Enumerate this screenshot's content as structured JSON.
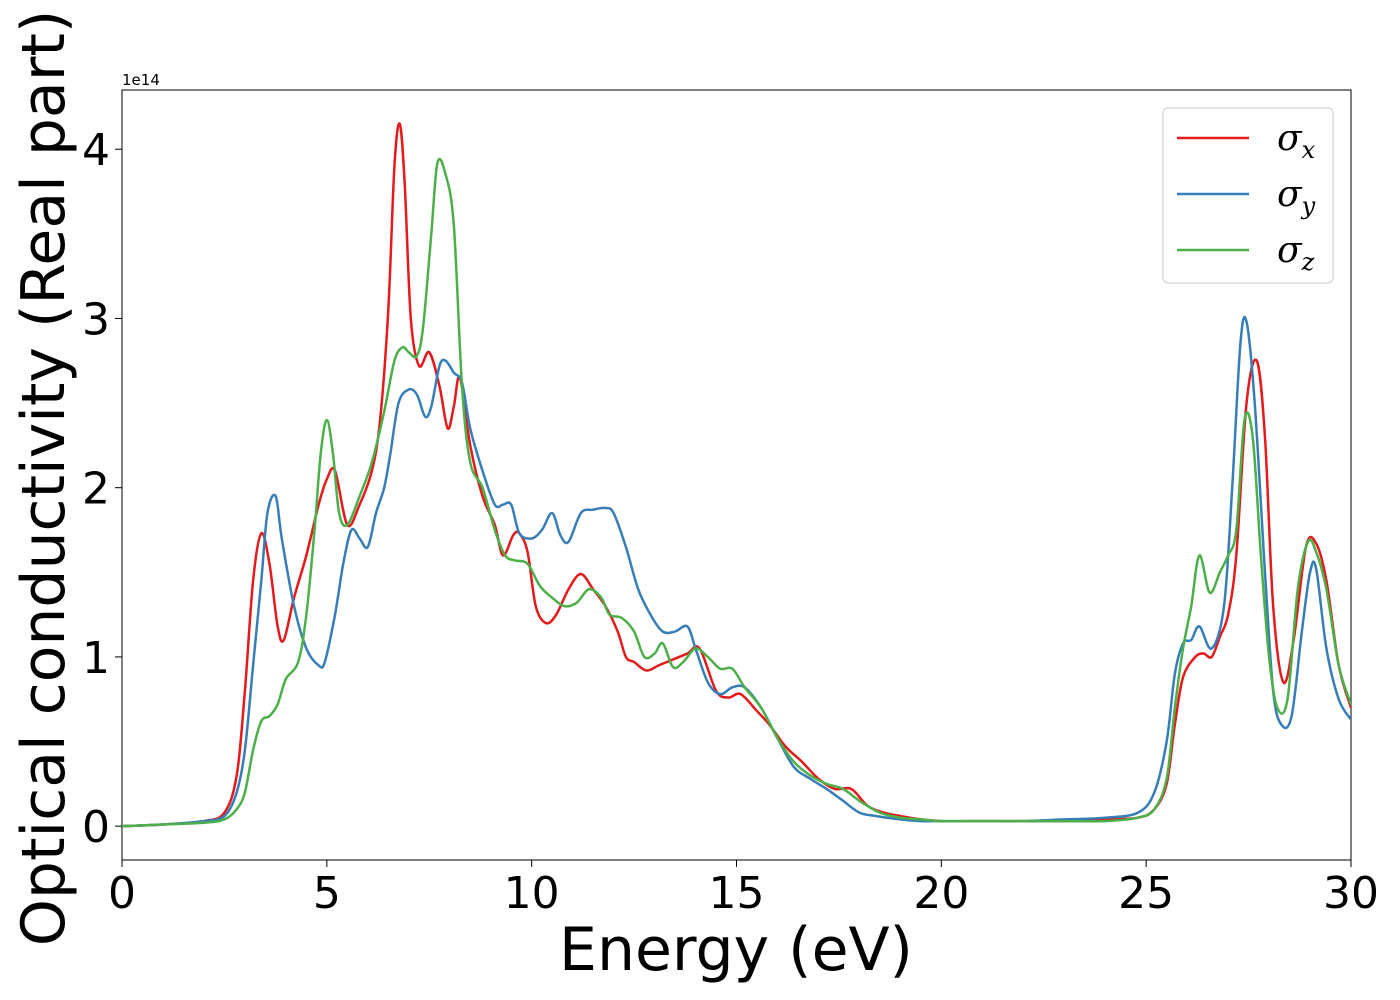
{
  "chart_data": {
    "type": "line",
    "title": "",
    "xlabel": "Energy (eV)",
    "ylabel": "Optical conductivity (Real part)",
    "offset_text": "1e14",
    "xlim": [
      0,
      30
    ],
    "ylim": [
      -0.2,
      4.35
    ],
    "y_scale_factor": 100000000000000.0,
    "xticks": [
      0,
      5,
      10,
      15,
      20,
      25,
      30
    ],
    "yticks": [
      0,
      1,
      2,
      3,
      4
    ],
    "grid": false,
    "legend_position": "top-right",
    "series": [
      {
        "name": "σx",
        "symbol": "σ",
        "subscript": "x",
        "color": "#e41a1c",
        "x": [
          0,
          1,
          2,
          2.5,
          2.8,
          3.0,
          3.2,
          3.4,
          3.6,
          3.8,
          3.95,
          4.2,
          4.5,
          4.8,
          5.0,
          5.2,
          5.5,
          5.8,
          6.1,
          6.3,
          6.5,
          6.65,
          6.78,
          6.9,
          7.05,
          7.25,
          7.5,
          7.75,
          7.95,
          8.1,
          8.25,
          8.5,
          8.8,
          9.1,
          9.3,
          9.55,
          9.7,
          9.9,
          10.1,
          10.35,
          10.6,
          10.9,
          11.2,
          11.5,
          11.8,
          12.1,
          12.3,
          12.5,
          12.8,
          13.1,
          13.4,
          13.8,
          14.1,
          14.5,
          14.8,
          15.1,
          15.5,
          15.8,
          16.2,
          16.6,
          17.0,
          17.4,
          17.8,
          18.2,
          18.6,
          19.0,
          19.5,
          20,
          21,
          22,
          23,
          24,
          24.8,
          25.2,
          25.5,
          25.7,
          25.9,
          26.2,
          26.4,
          26.6,
          26.8,
          27.0,
          27.2,
          27.45,
          27.7,
          27.9,
          28.1,
          28.35,
          28.6,
          28.9,
          29.15,
          29.4,
          29.7,
          30
        ],
        "y": [
          0.0,
          0.01,
          0.03,
          0.08,
          0.3,
          0.8,
          1.45,
          1.73,
          1.55,
          1.18,
          1.1,
          1.35,
          1.6,
          1.9,
          2.05,
          2.1,
          1.78,
          1.9,
          2.1,
          2.4,
          3.05,
          3.9,
          4.15,
          3.8,
          3.0,
          2.72,
          2.8,
          2.6,
          2.35,
          2.48,
          2.65,
          2.25,
          1.95,
          1.78,
          1.6,
          1.72,
          1.73,
          1.62,
          1.3,
          1.2,
          1.25,
          1.4,
          1.49,
          1.4,
          1.3,
          1.15,
          1.0,
          0.97,
          0.92,
          0.95,
          0.98,
          1.02,
          1.05,
          0.8,
          0.76,
          0.78,
          0.68,
          0.6,
          0.47,
          0.38,
          0.28,
          0.22,
          0.22,
          0.12,
          0.08,
          0.06,
          0.04,
          0.03,
          0.03,
          0.03,
          0.03,
          0.04,
          0.05,
          0.1,
          0.25,
          0.6,
          0.88,
          1.0,
          1.02,
          1.0,
          1.12,
          1.25,
          1.6,
          2.5,
          2.75,
          2.3,
          1.3,
          0.85,
          1.1,
          1.65,
          1.67,
          1.45,
          0.95,
          0.7
        ]
      },
      {
        "name": "σy",
        "symbol": "σ",
        "subscript": "y",
        "color": "#377eb8",
        "x": [
          0,
          1,
          2,
          2.5,
          2.8,
          3.0,
          3.2,
          3.4,
          3.55,
          3.75,
          3.9,
          4.2,
          4.5,
          4.8,
          4.95,
          5.2,
          5.4,
          5.6,
          5.8,
          6.0,
          6.2,
          6.4,
          6.55,
          6.75,
          7.0,
          7.2,
          7.4,
          7.55,
          7.75,
          7.9,
          8.1,
          8.3,
          8.5,
          8.8,
          9.1,
          9.3,
          9.5,
          9.7,
          10.0,
          10.25,
          10.5,
          10.7,
          10.9,
          11.2,
          11.5,
          11.8,
          12.0,
          12.3,
          12.6,
          12.9,
          13.2,
          13.5,
          13.8,
          14.0,
          14.3,
          14.6,
          14.9,
          15.2,
          15.6,
          16.0,
          16.4,
          16.8,
          17.2,
          17.6,
          18.0,
          18.4,
          19.0,
          19.5,
          20,
          21,
          22,
          23,
          24,
          24.8,
          25.2,
          25.5,
          25.7,
          25.9,
          26.1,
          26.3,
          26.6,
          26.9,
          27.1,
          27.3,
          27.45,
          27.65,
          27.9,
          28.1,
          28.3,
          28.55,
          28.8,
          29.0,
          29.15,
          29.4,
          29.7,
          30
        ],
        "y": [
          0.0,
          0.01,
          0.03,
          0.06,
          0.2,
          0.45,
          0.95,
          1.45,
          1.85,
          1.95,
          1.7,
          1.3,
          1.05,
          0.95,
          0.97,
          1.25,
          1.55,
          1.75,
          1.7,
          1.65,
          1.85,
          2.0,
          2.2,
          2.5,
          2.58,
          2.55,
          2.42,
          2.48,
          2.72,
          2.75,
          2.68,
          2.62,
          2.35,
          2.1,
          1.9,
          1.9,
          1.9,
          1.73,
          1.7,
          1.75,
          1.85,
          1.72,
          1.68,
          1.85,
          1.87,
          1.88,
          1.85,
          1.65,
          1.4,
          1.25,
          1.15,
          1.15,
          1.18,
          1.05,
          0.85,
          0.78,
          0.82,
          0.82,
          0.7,
          0.52,
          0.35,
          0.28,
          0.22,
          0.15,
          0.08,
          0.06,
          0.04,
          0.03,
          0.03,
          0.03,
          0.03,
          0.04,
          0.05,
          0.08,
          0.2,
          0.5,
          0.9,
          1.08,
          1.1,
          1.18,
          1.05,
          1.3,
          2.0,
          2.85,
          2.98,
          2.5,
          1.5,
          0.8,
          0.6,
          0.65,
          1.15,
          1.5,
          1.52,
          1.05,
          0.75,
          0.63
        ]
      },
      {
        "name": "σz",
        "symbol": "σ",
        "subscript": "z",
        "color": "#4daf4a",
        "x": [
          0,
          1,
          2,
          2.5,
          2.8,
          3.0,
          3.2,
          3.4,
          3.6,
          3.8,
          4.0,
          4.3,
          4.5,
          4.7,
          4.85,
          5.0,
          5.15,
          5.3,
          5.5,
          5.8,
          6.1,
          6.4,
          6.65,
          6.85,
          7.0,
          7.2,
          7.35,
          7.55,
          7.7,
          7.9,
          8.1,
          8.3,
          8.5,
          8.8,
          9.1,
          9.35,
          9.6,
          9.9,
          10.2,
          10.5,
          10.8,
          11.1,
          11.4,
          11.7,
          11.9,
          12.2,
          12.5,
          12.75,
          13.0,
          13.2,
          13.45,
          13.7,
          14.0,
          14.3,
          14.6,
          14.9,
          15.2,
          15.6,
          16.0,
          16.4,
          16.8,
          17.2,
          17.6,
          18.0,
          18.5,
          19.0,
          19.5,
          20,
          21,
          22,
          23,
          24,
          24.8,
          25.2,
          25.5,
          25.7,
          25.9,
          26.1,
          26.3,
          26.55,
          26.8,
          27.0,
          27.2,
          27.4,
          27.6,
          27.8,
          28.0,
          28.2,
          28.45,
          28.7,
          28.95,
          29.15,
          29.4,
          29.7,
          30
        ],
        "y": [
          0.0,
          0.01,
          0.02,
          0.04,
          0.1,
          0.2,
          0.45,
          0.62,
          0.65,
          0.72,
          0.87,
          0.97,
          1.25,
          1.75,
          2.2,
          2.4,
          2.2,
          1.85,
          1.78,
          1.95,
          2.15,
          2.45,
          2.75,
          2.83,
          2.8,
          2.78,
          2.95,
          3.5,
          3.92,
          3.85,
          3.55,
          2.6,
          2.15,
          2.0,
          1.75,
          1.6,
          1.57,
          1.55,
          1.42,
          1.35,
          1.3,
          1.32,
          1.4,
          1.35,
          1.25,
          1.23,
          1.15,
          1.0,
          1.02,
          1.08,
          0.94,
          0.97,
          1.05,
          1.0,
          0.93,
          0.93,
          0.82,
          0.7,
          0.52,
          0.38,
          0.3,
          0.25,
          0.22,
          0.15,
          0.08,
          0.05,
          0.04,
          0.03,
          0.03,
          0.03,
          0.03,
          0.03,
          0.05,
          0.1,
          0.28,
          0.7,
          1.05,
          1.3,
          1.6,
          1.38,
          1.5,
          1.6,
          1.75,
          2.4,
          2.3,
          1.6,
          1.0,
          0.7,
          0.75,
          1.4,
          1.68,
          1.62,
          1.4,
          0.95,
          0.72
        ]
      }
    ]
  }
}
